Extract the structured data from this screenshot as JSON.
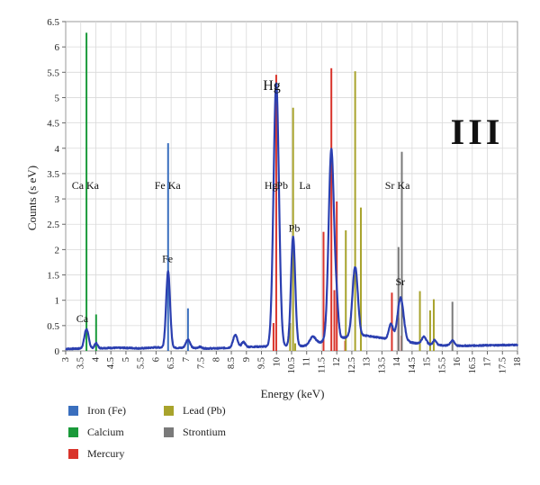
{
  "chart_data": {
    "type": "line",
    "title": "",
    "xlabel": "Energy (keV)",
    "ylabel": "Counts (s eV)",
    "xlim": [
      3,
      18
    ],
    "ylim": [
      0,
      6.5
    ],
    "x_ticks": [
      "3",
      "3.5",
      "4",
      "4.5",
      "5",
      "5.5",
      "6",
      "6.5",
      "7",
      "7.5",
      "8",
      "8.5",
      "9",
      "9.5",
      "10",
      "10.5",
      "11",
      "11.5",
      "12",
      "12.5",
      "13",
      "13.5",
      "14",
      "14.5",
      "15",
      "15.5",
      "16",
      "16.5",
      "17",
      "17.5",
      "18"
    ],
    "y_ticks": [
      "0",
      "0.5",
      "1",
      "1.5",
      "2",
      "2.5",
      "3",
      "3.5",
      "4",
      "4.5",
      "5",
      "5.5",
      "6",
      "6.5"
    ],
    "grid": true,
    "panel_label": "III",
    "colors": {
      "spectrum": "#2b3fb0",
      "Iron (Fe)": "#3a6fbe",
      "Calcium": "#1a9a3a",
      "Mercury": "#d9342b",
      "Lead (Pb)": "#a8a32c",
      "Strontium": "#7a7a7a"
    },
    "spectrum": {
      "baseline": [
        [
          3,
          0.04
        ],
        [
          4.5,
          0.06
        ],
        [
          5,
          0.06
        ],
        [
          5.5,
          0.05
        ],
        [
          6,
          0.07
        ],
        [
          7.5,
          0.05
        ],
        [
          8,
          0.05
        ],
        [
          9,
          0.08
        ],
        [
          11,
          0.1
        ],
        [
          12,
          0.25
        ],
        [
          13,
          0.3
        ],
        [
          15,
          0.12
        ],
        [
          16,
          0.1
        ],
        [
          18,
          0.12
        ]
      ],
      "peaks": [
        {
          "x": 3.69,
          "h": 0.38,
          "w": 0.07
        },
        {
          "x": 4.01,
          "h": 0.1,
          "w": 0.05
        },
        {
          "x": 6.4,
          "h": 1.5,
          "w": 0.065
        },
        {
          "x": 7.06,
          "h": 0.17,
          "w": 0.07
        },
        {
          "x": 7.45,
          "h": 0.03,
          "w": 0.06
        },
        {
          "x": 8.63,
          "h": 0.25,
          "w": 0.07
        },
        {
          "x": 8.9,
          "h": 0.1,
          "w": 0.06
        },
        {
          "x": 9.99,
          "h": 5.2,
          "w": 0.09
        },
        {
          "x": 10.55,
          "h": 2.15,
          "w": 0.07
        },
        {
          "x": 11.2,
          "h": 0.15,
          "w": 0.1
        },
        {
          "x": 11.82,
          "h": 3.75,
          "w": 0.09
        },
        {
          "x": 12.0,
          "h": 0.5,
          "w": 0.06
        },
        {
          "x": 12.61,
          "h": 1.38,
          "w": 0.09
        },
        {
          "x": 13.8,
          "h": 0.3,
          "w": 0.07
        },
        {
          "x": 14.12,
          "h": 0.85,
          "w": 0.1
        },
        {
          "x": 14.9,
          "h": 0.15,
          "w": 0.08
        },
        {
          "x": 15.25,
          "h": 0.1,
          "w": 0.06
        },
        {
          "x": 15.84,
          "h": 0.1,
          "w": 0.07
        }
      ]
    },
    "series": [
      {
        "name": "Iron (Fe)",
        "lines": [
          {
            "x": 6.4,
            "y": 4.1
          },
          {
            "x": 7.06,
            "y": 0.84
          }
        ]
      },
      {
        "name": "Calcium",
        "lines": [
          {
            "x": 3.69,
            "y": 6.28
          },
          {
            "x": 4.01,
            "y": 0.72
          }
        ]
      },
      {
        "name": "Mercury",
        "lines": [
          {
            "x": 9.99,
            "y": 5.45
          },
          {
            "x": 9.9,
            "y": 0.55
          },
          {
            "x": 11.56,
            "y": 2.35
          },
          {
            "x": 11.82,
            "y": 5.58
          },
          {
            "x": 11.92,
            "y": 1.2
          },
          {
            "x": 12.0,
            "y": 2.95
          },
          {
            "x": 12.28,
            "y": 0.2
          },
          {
            "x": 13.83,
            "y": 1.15
          },
          {
            "x": 14.05,
            "y": 0.65
          },
          {
            "x": 14.15,
            "y": 0.3
          }
        ]
      },
      {
        "name": "Lead (Pb)",
        "lines": [
          {
            "x": 10.45,
            "y": 0.55
          },
          {
            "x": 10.55,
            "y": 4.8
          },
          {
            "x": 10.62,
            "y": 0.15
          },
          {
            "x": 12.3,
            "y": 2.38
          },
          {
            "x": 12.61,
            "y": 5.52
          },
          {
            "x": 12.8,
            "y": 2.83
          },
          {
            "x": 14.76,
            "y": 1.18
          },
          {
            "x": 15.1,
            "y": 0.8
          },
          {
            "x": 15.22,
            "y": 1.02
          }
        ]
      },
      {
        "name": "Strontium",
        "lines": [
          {
            "x": 14.05,
            "y": 2.05
          },
          {
            "x": 14.16,
            "y": 3.93
          },
          {
            "x": 15.84,
            "y": 0.97
          }
        ]
      }
    ],
    "annotations": [
      {
        "text": "Ca Ka",
        "x": 3.2,
        "y": 3.2,
        "size": 12
      },
      {
        "text": "Fe Ka",
        "x": 5.95,
        "y": 3.2,
        "size": 12
      },
      {
        "text": "Hg",
        "x": 9.6,
        "y": 3.2,
        "size": 12
      },
      {
        "text": "Pb",
        "x": 10.0,
        "y": 3.2,
        "size": 12
      },
      {
        "text": "La",
        "x": 10.75,
        "y": 3.2,
        "size": 12
      },
      {
        "text": "Sr  Ka",
        "x": 13.6,
        "y": 3.2,
        "size": 12
      },
      {
        "text": "Hg",
        "x": 9.55,
        "y": 5.15,
        "size": 16
      },
      {
        "text": "Pb",
        "x": 10.4,
        "y": 2.35,
        "size": 12
      },
      {
        "text": "Fe",
        "x": 6.2,
        "y": 1.75,
        "size": 12
      },
      {
        "text": "Ca",
        "x": 3.35,
        "y": 0.57,
        "size": 12
      },
      {
        "text": "Sr",
        "x": 13.95,
        "y": 1.3,
        "size": 12
      }
    ],
    "legend": [
      {
        "name": "Iron (Fe)",
        "color": "#3a6fbe"
      },
      {
        "name": "Lead (Pb)",
        "color": "#a8a32c"
      },
      {
        "name": "Calcium",
        "color": "#1a9a3a"
      },
      {
        "name": "Strontium",
        "color": "#7a7a7a"
      },
      {
        "name": "Mercury",
        "color": "#d9342b"
      }
    ],
    "legend_position": "bottom-left"
  }
}
